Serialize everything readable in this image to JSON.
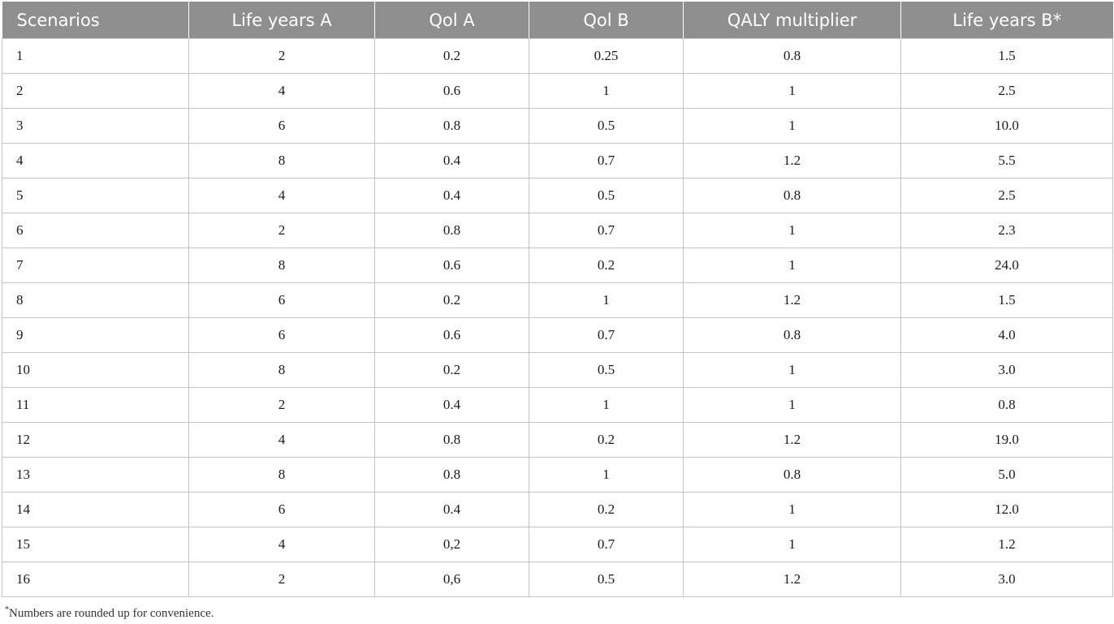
{
  "table": {
    "headers": [
      "Scenarios",
      "Life years A",
      "Qol A",
      "Qol B",
      "QALY multiplier",
      "Life years B*"
    ],
    "rows": [
      [
        "1",
        "2",
        "0.2",
        "0.25",
        "0.8",
        "1.5"
      ],
      [
        "2",
        "4",
        "0.6",
        "1",
        "1",
        "2.5"
      ],
      [
        "3",
        "6",
        "0.8",
        "0.5",
        "1",
        "10.0"
      ],
      [
        "4",
        "8",
        "0.4",
        "0.7",
        "1.2",
        "5.5"
      ],
      [
        "5",
        "4",
        "0.4",
        "0.5",
        "0.8",
        "2.5"
      ],
      [
        "6",
        "2",
        "0.8",
        "0.7",
        "1",
        "2.3"
      ],
      [
        "7",
        "8",
        "0.6",
        "0.2",
        "1",
        "24.0"
      ],
      [
        "8",
        "6",
        "0.2",
        "1",
        "1.2",
        "1.5"
      ],
      [
        "9",
        "6",
        "0.6",
        "0.7",
        "0.8",
        "4.0"
      ],
      [
        "10",
        "8",
        "0.2",
        "0.5",
        "1",
        "3.0"
      ],
      [
        "11",
        "2",
        "0.4",
        "1",
        "1",
        "0.8"
      ],
      [
        "12",
        "4",
        "0.8",
        "0.2",
        "1.2",
        "19.0"
      ],
      [
        "13",
        "8",
        "0.8",
        "1",
        "0.8",
        "5.0"
      ],
      [
        "14",
        "6",
        "0.4",
        "0.2",
        "1",
        "12.0"
      ],
      [
        "15",
        "4",
        "0,2",
        "0.7",
        "1",
        "1.2"
      ],
      [
        "16",
        "2",
        "0,6",
        "0.5",
        "1.2",
        "3.0"
      ]
    ]
  },
  "footnote": {
    "marker": "*",
    "text": "Numbers are rounded up for convenience."
  },
  "colors": {
    "header_bg": "#8f8f8f",
    "header_text": "#ffffff",
    "grid": "#c4c4c4"
  }
}
